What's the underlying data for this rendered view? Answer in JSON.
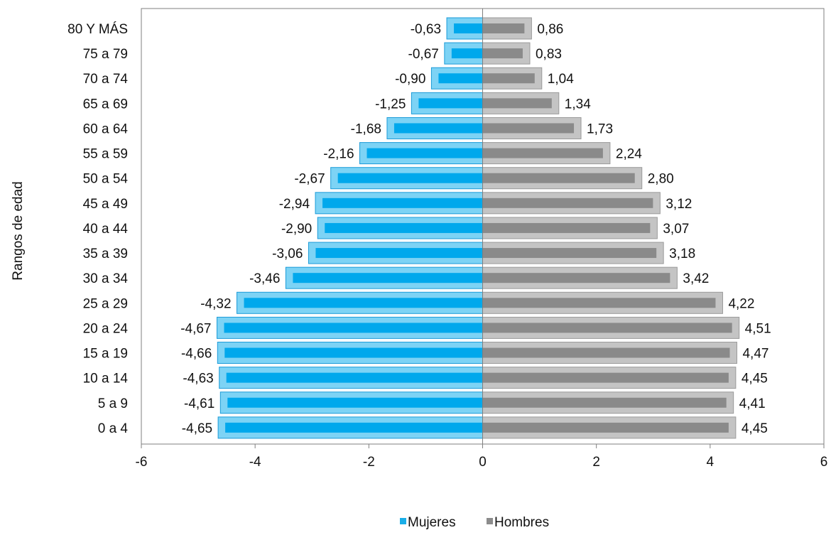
{
  "chart_data": {
    "type": "bar",
    "orientation": "horizontal",
    "ylabel": "Rangos de edad",
    "categories": [
      "80 Y MÁS",
      "75 a 79",
      "70 a 74",
      "65 a 69",
      "60 a 64",
      "55 a 59",
      "50 a 54",
      "45 a 49",
      "40 a 44",
      "35 a 39",
      "30 a 34",
      "25 a 29",
      "20 a 24",
      "15 a 19",
      "10 a 14",
      "5 a 9",
      "0 a 4"
    ],
    "series": [
      {
        "name": "Mujeres",
        "color": "#1AAEE8",
        "values": [
          -0.63,
          -0.67,
          -0.9,
          -1.25,
          -1.68,
          -2.16,
          -2.67,
          -2.94,
          -2.9,
          -3.06,
          -3.46,
          -4.32,
          -4.67,
          -4.66,
          -4.63,
          -4.61,
          -4.65
        ],
        "labels": [
          "-0,63",
          "-0,67",
          "-0,90",
          "-1,25",
          "-1,68",
          "-2,16",
          "-2,67",
          "-2,94",
          "-2,90",
          "-3,06",
          "-3,46",
          "-4,32",
          "-4,67",
          "-4,66",
          "-4,63",
          "-4,61",
          "-4,65"
        ]
      },
      {
        "name": "Hombres",
        "color": "#8C8C8C",
        "values": [
          0.86,
          0.83,
          1.04,
          1.34,
          1.73,
          2.24,
          2.8,
          3.12,
          3.07,
          3.18,
          3.42,
          4.22,
          4.51,
          4.47,
          4.45,
          4.41,
          4.45
        ],
        "labels": [
          "0,86",
          "0,83",
          "1,04",
          "1,34",
          "1,73",
          "2,24",
          "2,80",
          "3,12",
          "3,07",
          "3,18",
          "3,42",
          "4,22",
          "4,51",
          "4,47",
          "4,45",
          "4,41",
          "4,45"
        ]
      }
    ],
    "xlim": [
      -6,
      6
    ],
    "xticks": [
      -6,
      -4,
      -2,
      0,
      2,
      4,
      6
    ],
    "grid": false,
    "legend": "bottom-center"
  }
}
